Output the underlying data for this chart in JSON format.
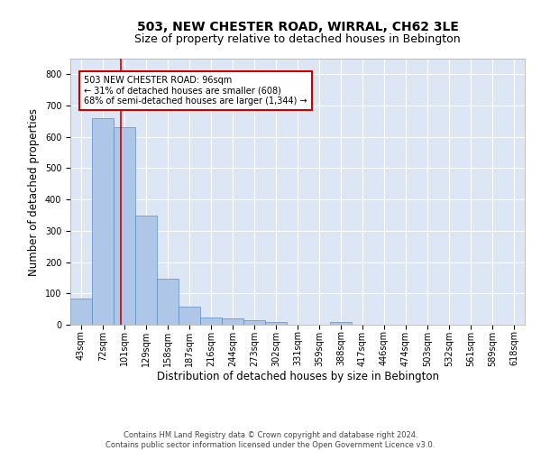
{
  "title": "503, NEW CHESTER ROAD, WIRRAL, CH62 3LE",
  "subtitle": "Size of property relative to detached houses in Bebington",
  "xlabel": "Distribution of detached houses by size in Bebington",
  "ylabel": "Number of detached properties",
  "footnote": "Contains HM Land Registry data © Crown copyright and database right 2024.\nContains public sector information licensed under the Open Government Licence v3.0.",
  "bin_labels": [
    "43sqm",
    "72sqm",
    "101sqm",
    "129sqm",
    "158sqm",
    "187sqm",
    "216sqm",
    "244sqm",
    "273sqm",
    "302sqm",
    "331sqm",
    "359sqm",
    "388sqm",
    "417sqm",
    "446sqm",
    "474sqm",
    "503sqm",
    "532sqm",
    "561sqm",
    "589sqm",
    "618sqm"
  ],
  "bar_heights": [
    83,
    660,
    630,
    348,
    147,
    57,
    23,
    19,
    15,
    9,
    0,
    0,
    8,
    0,
    0,
    0,
    0,
    0,
    0,
    0,
    0
  ],
  "bar_color": "#aec6e8",
  "bar_edge_color": "#5a8fc2",
  "property_label": "503 NEW CHESTER ROAD: 96sqm",
  "pct_smaller": "31% of detached houses are smaller (608)",
  "pct_larger": "68% of semi-detached houses are larger (1,344)",
  "vline_color": "#cc0000",
  "annotation_box_color": "#cc0000",
  "ylim": [
    0,
    850
  ],
  "yticks": [
    0,
    100,
    200,
    300,
    400,
    500,
    600,
    700,
    800
  ],
  "background_color": "#dce6f5",
  "grid_color": "#ffffff",
  "title_fontsize": 10,
  "subtitle_fontsize": 9,
  "ylabel_fontsize": 8.5,
  "xlabel_fontsize": 8.5,
  "tick_fontsize": 7,
  "annot_fontsize": 7,
  "footnote_fontsize": 6
}
